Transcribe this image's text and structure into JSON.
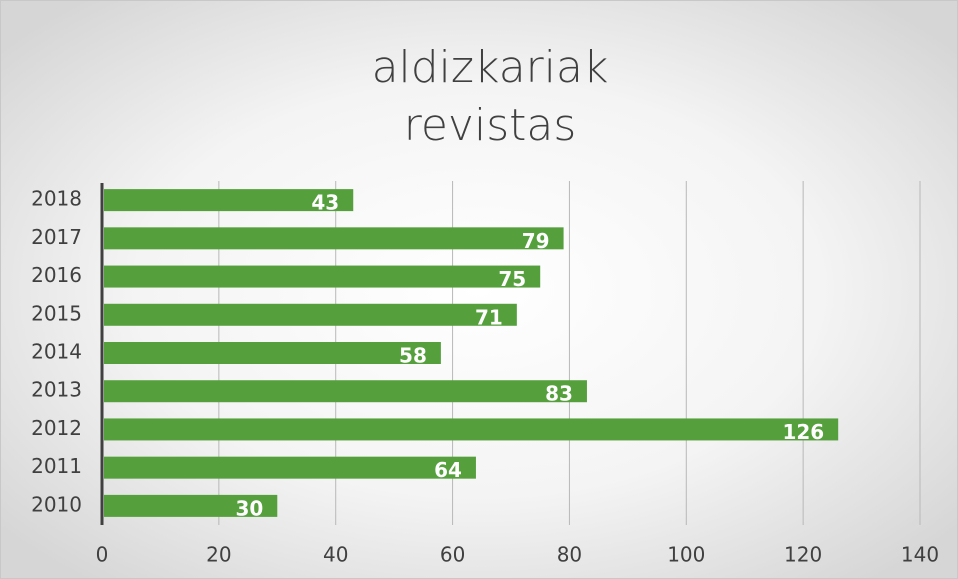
{
  "chart_data": {
    "type": "bar",
    "orientation": "horizontal",
    "title": [
      "aldizkariak",
      "revistas"
    ],
    "categories": [
      "2018",
      "2017",
      "2016",
      "2015",
      "2014",
      "2013",
      "2012",
      "2011",
      "2010"
    ],
    "values": [
      43,
      79,
      75,
      71,
      58,
      83,
      126,
      64,
      30
    ],
    "color": "#55a03d",
    "xlim": [
      0,
      140
    ],
    "xticks": [
      0,
      20,
      40,
      60,
      80,
      100,
      120,
      140
    ],
    "grid": true
  }
}
